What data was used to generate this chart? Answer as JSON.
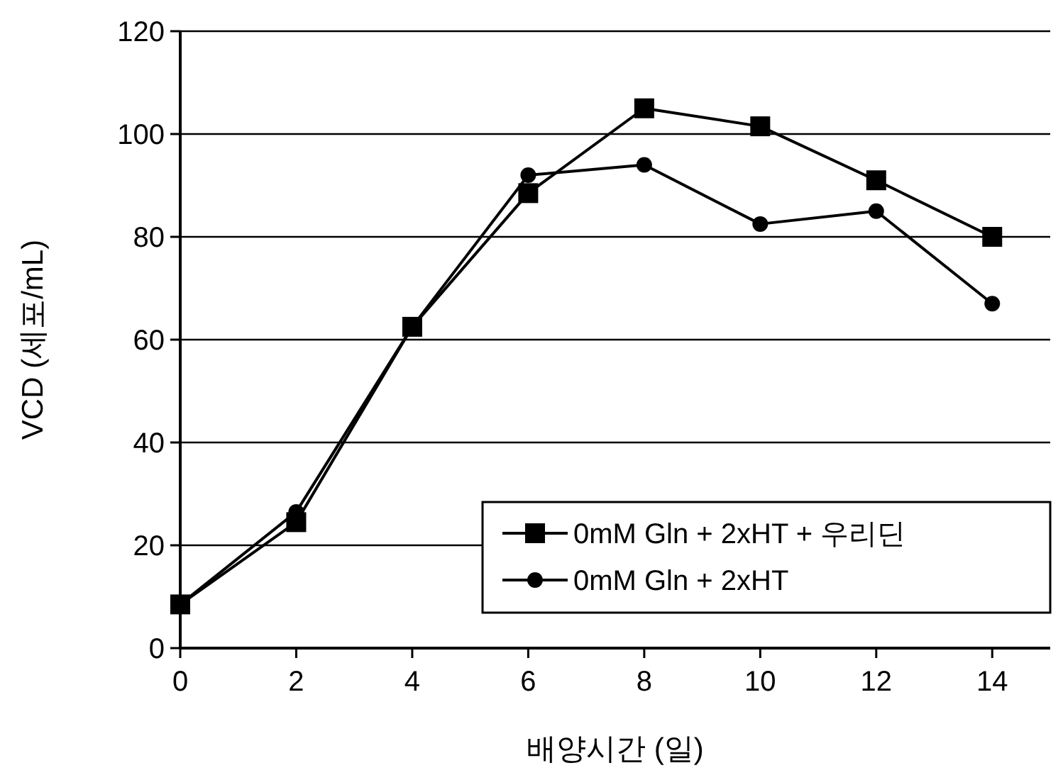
{
  "chart_data": {
    "type": "line",
    "xlabel": "배양시간 (일)",
    "ylabel": "VCD (세포/mL)",
    "x": [
      0,
      2,
      4,
      6,
      8,
      10,
      12,
      14
    ],
    "series": [
      {
        "name": "0mM Gln + 2xHT + 우리딘",
        "color": "#000000",
        "marker": "square",
        "values": [
          8.5,
          24.5,
          62.5,
          88.5,
          105,
          101.5,
          91,
          80
        ]
      },
      {
        "name": "0mM Gln + 2xHT",
        "color": "#000000",
        "marker": "circle",
        "values": [
          8.5,
          26.5,
          62.5,
          92,
          94,
          82.5,
          85,
          67
        ]
      }
    ],
    "xlim": [
      0,
      15
    ],
    "xticks": [
      0,
      2,
      4,
      6,
      8,
      10,
      12,
      14
    ],
    "ylim": [
      0,
      120
    ],
    "yticks": [
      0,
      20,
      40,
      60,
      80,
      100,
      120
    ],
    "grid": "y",
    "legend": "bottom right",
    "line_style": "solid"
  }
}
